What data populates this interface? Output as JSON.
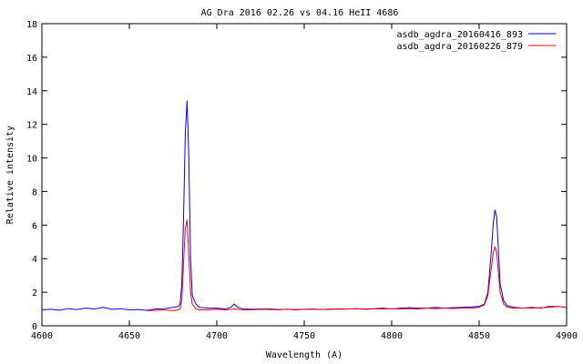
{
  "chart_data": {
    "type": "line",
    "title": "AG Dra 2016 02.26 vs 04.16 HeII 4686",
    "xlabel": "Wavelength (A)",
    "ylabel": "Relative intensity",
    "xlim": [
      4600,
      4900
    ],
    "ylim": [
      0,
      18
    ],
    "x_ticks": [
      4600,
      4650,
      4700,
      4750,
      4800,
      4850,
      4900
    ],
    "y_ticks": [
      0,
      2,
      4,
      6,
      8,
      10,
      12,
      14,
      16,
      18
    ],
    "grid": false,
    "legend_position": "top-right",
    "series": [
      {
        "name": "asdb_agdra_20160416_893",
        "color": "#0000ff",
        "points": [
          [
            4600,
            0.95
          ],
          [
            4605,
            0.98
          ],
          [
            4610,
            0.93
          ],
          [
            4615,
            1.02
          ],
          [
            4620,
            0.97
          ],
          [
            4625,
            1.05
          ],
          [
            4630,
            1.0
          ],
          [
            4635,
            1.1
          ],
          [
            4640,
            0.98
          ],
          [
            4645,
            1.02
          ],
          [
            4650,
            0.95
          ],
          [
            4655,
            0.97
          ],
          [
            4660,
            0.92
          ],
          [
            4665,
            1.0
          ],
          [
            4670,
            1.02
          ],
          [
            4675,
            1.1
          ],
          [
            4678,
            1.15
          ],
          [
            4679,
            1.3
          ],
          [
            4680,
            2.5
          ],
          [
            4681,
            6.5
          ],
          [
            4682,
            11.5
          ],
          [
            4683,
            13.4
          ],
          [
            4684,
            10.0
          ],
          [
            4685,
            4.0
          ],
          [
            4686,
            1.8
          ],
          [
            4688,
            1.3
          ],
          [
            4690,
            1.1
          ],
          [
            4695,
            1.05
          ],
          [
            4700,
            1.05
          ],
          [
            4705,
            1.0
          ],
          [
            4708,
            1.1
          ],
          [
            4710,
            1.3
          ],
          [
            4712,
            1.1
          ],
          [
            4715,
            1.0
          ],
          [
            4720,
            0.98
          ],
          [
            4725,
            1.0
          ],
          [
            4730,
            1.0
          ],
          [
            4735,
            0.97
          ],
          [
            4740,
            0.98
          ],
          [
            4745,
            0.95
          ],
          [
            4750,
            0.98
          ],
          [
            4755,
            1.0
          ],
          [
            4760,
            0.97
          ],
          [
            4765,
            0.98
          ],
          [
            4770,
            1.0
          ],
          [
            4775,
            1.0
          ],
          [
            4780,
            1.02
          ],
          [
            4785,
            1.0
          ],
          [
            4790,
            1.02
          ],
          [
            4795,
            1.05
          ],
          [
            4800,
            1.0
          ],
          [
            4805,
            1.05
          ],
          [
            4810,
            1.08
          ],
          [
            4815,
            1.05
          ],
          [
            4820,
            1.05
          ],
          [
            4825,
            1.1
          ],
          [
            4830,
            1.05
          ],
          [
            4835,
            1.08
          ],
          [
            4840,
            1.1
          ],
          [
            4845,
            1.12
          ],
          [
            4850,
            1.15
          ],
          [
            4853,
            1.3
          ],
          [
            4855,
            2.0
          ],
          [
            4857,
            4.5
          ],
          [
            4858,
            6.0
          ],
          [
            4859,
            6.9
          ],
          [
            4860,
            6.5
          ],
          [
            4861,
            4.5
          ],
          [
            4862,
            2.5
          ],
          [
            4864,
            1.5
          ],
          [
            4866,
            1.2
          ],
          [
            4870,
            1.1
          ],
          [
            4875,
            1.05
          ],
          [
            4880,
            1.1
          ],
          [
            4885,
            1.05
          ],
          [
            4890,
            1.15
          ],
          [
            4895,
            1.15
          ],
          [
            4900,
            1.1
          ]
        ]
      },
      {
        "name": "asdb_agdra_20160226_879",
        "color": "#ff0000",
        "points": [
          [
            4660,
            0.9
          ],
          [
            4665,
            0.92
          ],
          [
            4670,
            0.95
          ],
          [
            4675,
            0.9
          ],
          [
            4678,
            0.95
          ],
          [
            4679,
            1.0
          ],
          [
            4680,
            1.5
          ],
          [
            4681,
            3.8
          ],
          [
            4682,
            5.8
          ],
          [
            4683,
            6.3
          ],
          [
            4684,
            4.2
          ],
          [
            4685,
            2.0
          ],
          [
            4686,
            1.3
          ],
          [
            4688,
            1.0
          ],
          [
            4690,
            0.95
          ],
          [
            4695,
            0.95
          ],
          [
            4700,
            0.98
          ],
          [
            4705,
            0.95
          ],
          [
            4710,
            1.0
          ],
          [
            4715,
            0.95
          ],
          [
            4720,
            0.95
          ],
          [
            4725,
            0.98
          ],
          [
            4730,
            0.97
          ],
          [
            4735,
            0.95
          ],
          [
            4740,
            0.98
          ],
          [
            4745,
            0.97
          ],
          [
            4750,
            0.98
          ],
          [
            4755,
            0.98
          ],
          [
            4760,
            0.97
          ],
          [
            4765,
            1.0
          ],
          [
            4770,
            0.98
          ],
          [
            4775,
            1.0
          ],
          [
            4780,
            1.0
          ],
          [
            4785,
            0.98
          ],
          [
            4790,
            1.0
          ],
          [
            4795,
            1.0
          ],
          [
            4800,
            1.02
          ],
          [
            4805,
            1.0
          ],
          [
            4810,
            1.02
          ],
          [
            4815,
            1.0
          ],
          [
            4820,
            1.05
          ],
          [
            4825,
            1.02
          ],
          [
            4830,
            1.05
          ],
          [
            4835,
            1.03
          ],
          [
            4840,
            1.05
          ],
          [
            4845,
            1.05
          ],
          [
            4850,
            1.1
          ],
          [
            4853,
            1.25
          ],
          [
            4855,
            1.8
          ],
          [
            4857,
            3.5
          ],
          [
            4858,
            4.3
          ],
          [
            4859,
            4.7
          ],
          [
            4860,
            4.4
          ],
          [
            4861,
            3.2
          ],
          [
            4862,
            2.0
          ],
          [
            4864,
            1.3
          ],
          [
            4866,
            1.1
          ],
          [
            4870,
            1.05
          ],
          [
            4875,
            1.05
          ],
          [
            4880,
            1.05
          ],
          [
            4885,
            1.08
          ],
          [
            4890,
            1.1
          ],
          [
            4895,
            1.15
          ],
          [
            4900,
            1.1
          ]
        ]
      }
    ]
  }
}
